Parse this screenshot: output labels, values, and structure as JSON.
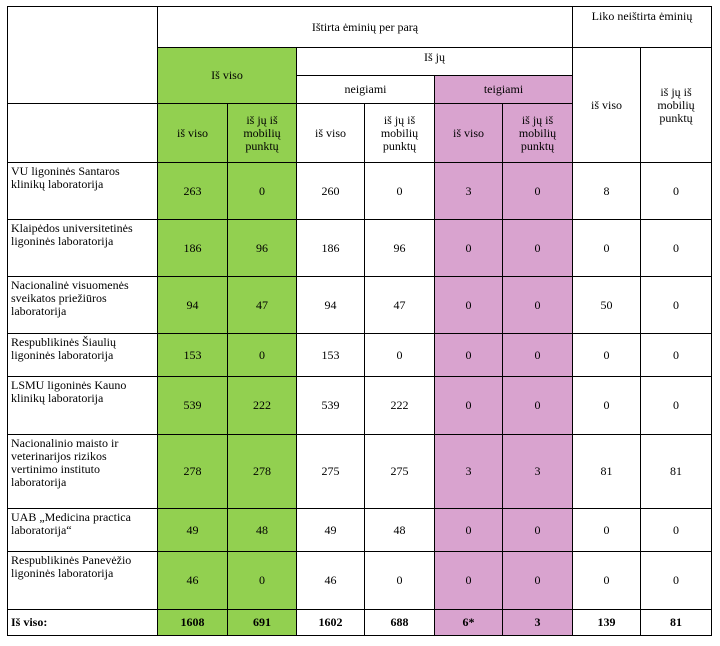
{
  "headers": {
    "tested_per_day": "Ištirta ėminių per parą",
    "remaining_untested": "Liko neištirta ėminių",
    "total": "Iš viso",
    "of_which": "Iš jų",
    "negative": "neigiami",
    "positive": "teigiami",
    "total_sub": "iš viso",
    "of_which_mobile": "iš jų iš mobilių punktų",
    "remaining_total": "iš viso",
    "remaining_mobile": "iš jų iš mobilių punktų"
  },
  "rows": [
    {
      "lab": "VU ligoninės Santaros klinikų laboratorija",
      "total": "263",
      "total_mobile": "0",
      "neg": "260",
      "neg_mobile": "0",
      "pos": "3",
      "pos_mobile": "0",
      "left": "8",
      "left_mobile": "0"
    },
    {
      "lab": "Klaipėdos universitetinės ligoninės laboratorija",
      "total": "186",
      "total_mobile": "96",
      "neg": "186",
      "neg_mobile": "96",
      "pos": "0",
      "pos_mobile": "0",
      "left": "0",
      "left_mobile": "0"
    },
    {
      "lab": "Nacionalinė visuomenės sveikatos priežiūros laboratorija",
      "total": "94",
      "total_mobile": "47",
      "neg": "94",
      "neg_mobile": "47",
      "pos": "0",
      "pos_mobile": "0",
      "left": "50",
      "left_mobile": "0"
    },
    {
      "lab": "Respublikinės Šiaulių ligoninės laboratorija",
      "total": "153",
      "total_mobile": "0",
      "neg": "153",
      "neg_mobile": "0",
      "pos": "0",
      "pos_mobile": "0",
      "left": "0",
      "left_mobile": "0"
    },
    {
      "lab": "LSMU ligoninės Kauno klinikų laboratorija",
      "total": "539",
      "total_mobile": "222",
      "neg": "539",
      "neg_mobile": "222",
      "pos": "0",
      "pos_mobile": "0",
      "left": "0",
      "left_mobile": "0"
    },
    {
      "lab": "Nacionalinio maisto ir veterinarijos rizikos vertinimo instituto laboratorija",
      "total": "278",
      "total_mobile": "278",
      "neg": "275",
      "neg_mobile": "275",
      "pos": "3",
      "pos_mobile": "3",
      "left": "81",
      "left_mobile": "81"
    },
    {
      "lab": "UAB „Medicina practica laboratorija“",
      "total": "49",
      "total_mobile": "48",
      "neg": "49",
      "neg_mobile": "48",
      "pos": "0",
      "pos_mobile": "0",
      "left": "0",
      "left_mobile": "0"
    },
    {
      "lab": "Respublikinės Panevėžio ligoninės laboratorija",
      "total": "46",
      "total_mobile": "0",
      "neg": "46",
      "neg_mobile": "0",
      "pos": "0",
      "pos_mobile": "0",
      "left": "0",
      "left_mobile": "0"
    }
  ],
  "totals": {
    "label": "Iš viso:",
    "total": "1608",
    "total_mobile": "691",
    "neg": "1602",
    "neg_mobile": "688",
    "pos": "6*",
    "pos_mobile": "3",
    "left": "139",
    "left_mobile": "81"
  },
  "colors": {
    "total_green": "#92d050",
    "positive_pink": "#d9a3cf"
  }
}
